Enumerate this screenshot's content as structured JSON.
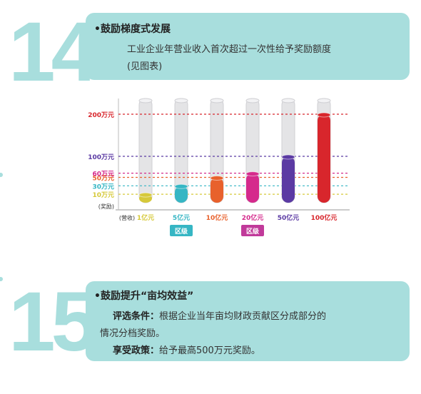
{
  "section14": {
    "number": "14",
    "title": "•鼓励梯度式发展",
    "line1": "工业企业年营业收入首次超过一次性给予奖励额度",
    "line2": "(见图表)"
  },
  "chart_data": {
    "type": "bar",
    "title": "",
    "xlabel": "",
    "ylabel": "",
    "x_prefix": "(营收)",
    "y_prefix": "(奖励)",
    "categories": [
      "1亿元",
      "5亿元",
      "10亿元",
      "20亿元",
      "50亿元",
      "100亿元"
    ],
    "values": [
      10,
      30,
      50,
      60,
      100,
      200
    ],
    "value_labels": [
      "10万元",
      "30万元",
      "50万元",
      "60万元",
      "100万元",
      "200万元"
    ],
    "colors": [
      "#d6c93a",
      "#36b6c4",
      "#e8612c",
      "#d52a8c",
      "#5b3aa3",
      "#d8262c"
    ],
    "region_tags": [
      {
        "label": "区级",
        "color": "#36b6c4"
      },
      {
        "label": "区级",
        "color": "#c13a9a"
      }
    ],
    "grid": false
  },
  "section15": {
    "number": "15",
    "title": "•鼓励提升“亩均效益”",
    "criteria_label": "评选条件：",
    "criteria_text1": "根据企业当年亩均财政贡献区分成部分的",
    "criteria_text2": "情况分档奖励。",
    "policy_label": "享受政策：",
    "policy_text": "给予最高500万元奖励。"
  }
}
